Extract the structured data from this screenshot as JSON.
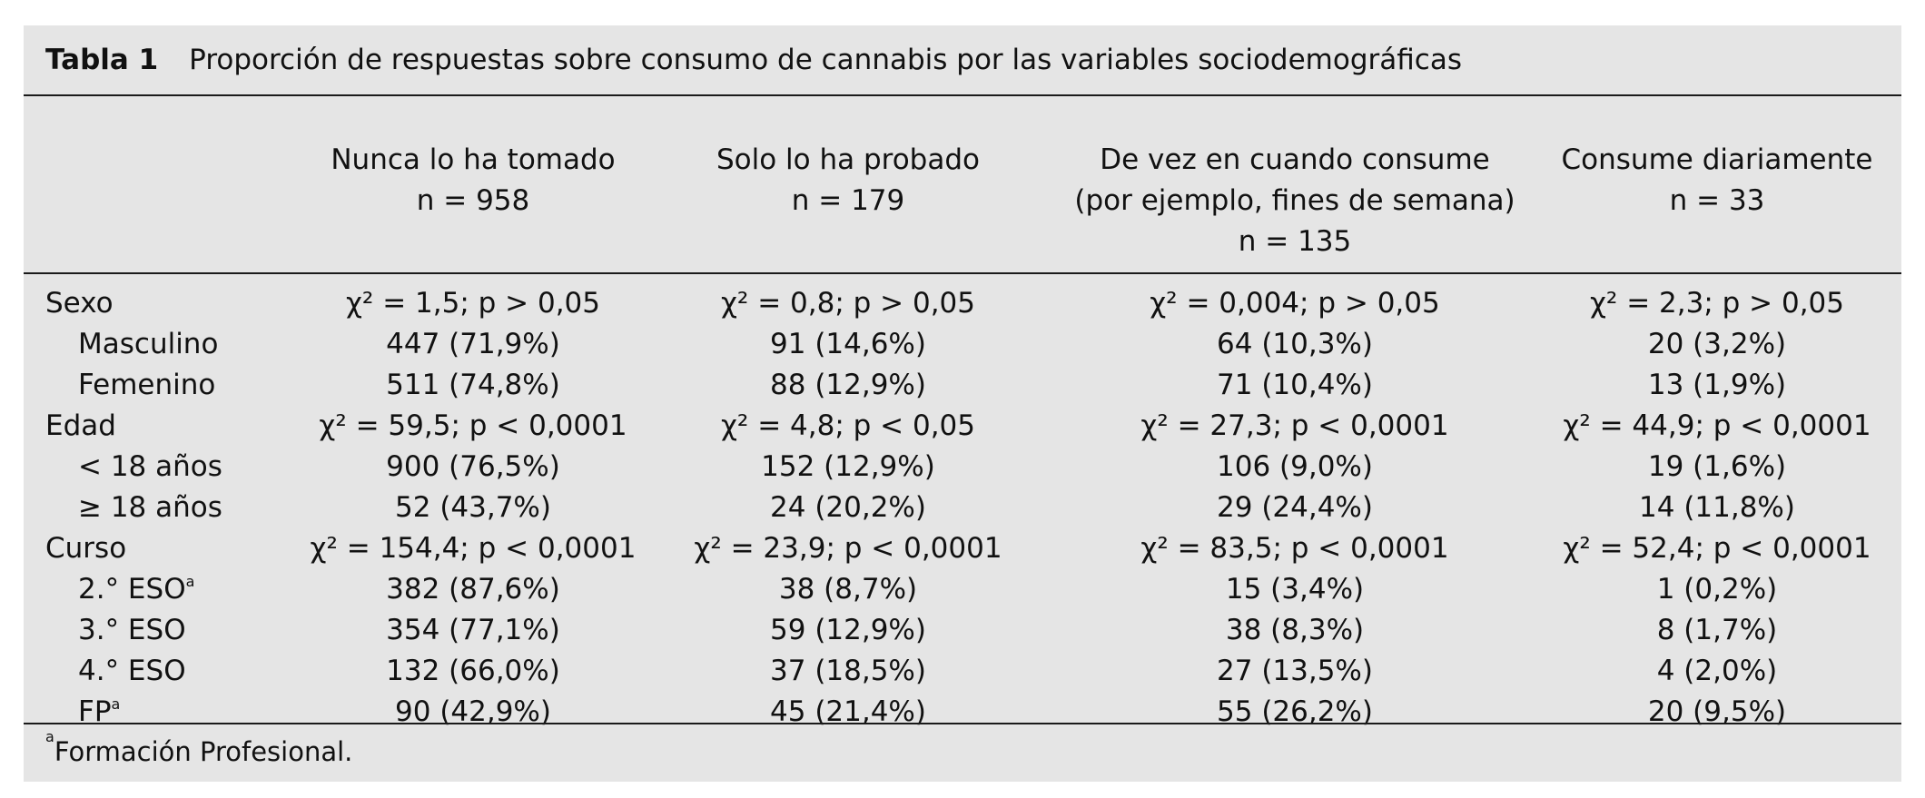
{
  "caption": {
    "label": "Tabla 1",
    "title": "Proporción de respuestas sobre consumo de cannabis por las variables sociodemográficas"
  },
  "columns": [
    {
      "lines": [
        "Nunca lo ha tomado",
        "n = 958"
      ]
    },
    {
      "lines": [
        "Solo lo ha probado",
        "n = 179"
      ]
    },
    {
      "lines": [
        "De vez en cuando consume",
        "(por ejemplo, fines de semana)",
        "n = 135"
      ]
    },
    {
      "lines": [
        "Consume diariamente",
        "n = 33"
      ]
    }
  ],
  "rows": [
    {
      "label": "Sexo",
      "cells": [
        "χ² = 1,5; p > 0,05",
        "χ² = 0,8; p > 0,05",
        "χ² = 0,004; p > 0,05",
        "χ² = 2,3; p > 0,05"
      ]
    },
    {
      "label": "Masculino",
      "cells": [
        "447 (71,9%)",
        "91 (14,6%)",
        "64 (10,3%)",
        "20 (3,2%)"
      ]
    },
    {
      "label": "Femenino",
      "cells": [
        "511 (74,8%)",
        "88 (12,9%)",
        "71 (10,4%)",
        "13 (1,9%)"
      ]
    },
    {
      "label": "Edad",
      "cells": [
        "χ² = 59,5; p < 0,0001",
        "χ² = 4,8; p < 0,05",
        "χ² = 27,3; p < 0,0001",
        "χ² = 44,9; p < 0,0001"
      ]
    },
    {
      "label": "< 18 años",
      "cells": [
        "900 (76,5%)",
        "152 (12,9%)",
        "106 (9,0%)",
        "19 (1,6%)"
      ]
    },
    {
      "label": "≥ 18 años",
      "cells": [
        "52 (43,7%)",
        "24 (20,2%)",
        "29 (24,4%)",
        "14 (11,8%)"
      ]
    },
    {
      "label": "Curso",
      "cells": [
        "χ² = 154,4; p < 0,0001",
        "χ² = 23,9; p < 0,0001",
        "χ² = 83,5; p < 0,0001",
        "χ² = 52,4; p < 0,0001"
      ]
    },
    {
      "label": "2.° ESO",
      "label_sup": "a",
      "cells": [
        "382 (87,6%)",
        "38 (8,7%)",
        "15 (3,4%)",
        "1 (0,2%)"
      ]
    },
    {
      "label": "3.° ESO",
      "cells": [
        "354 (77,1%)",
        "59 (12,9%)",
        "38 (8,3%)",
        "8 (1,7%)"
      ]
    },
    {
      "label": "4.° ESO",
      "cells": [
        "132 (66,0%)",
        "37 (18,5%)",
        "27 (13,5%)",
        "4 (2,0%)"
      ]
    },
    {
      "label": "FP",
      "label_sup": "a",
      "cells": [
        "90 (42,9%)",
        "45 (21,4%)",
        "55 (26,2%)",
        "20 (9,5%)"
      ]
    }
  ],
  "footnote": {
    "marker": "a",
    "text": "Formación Profesional."
  }
}
